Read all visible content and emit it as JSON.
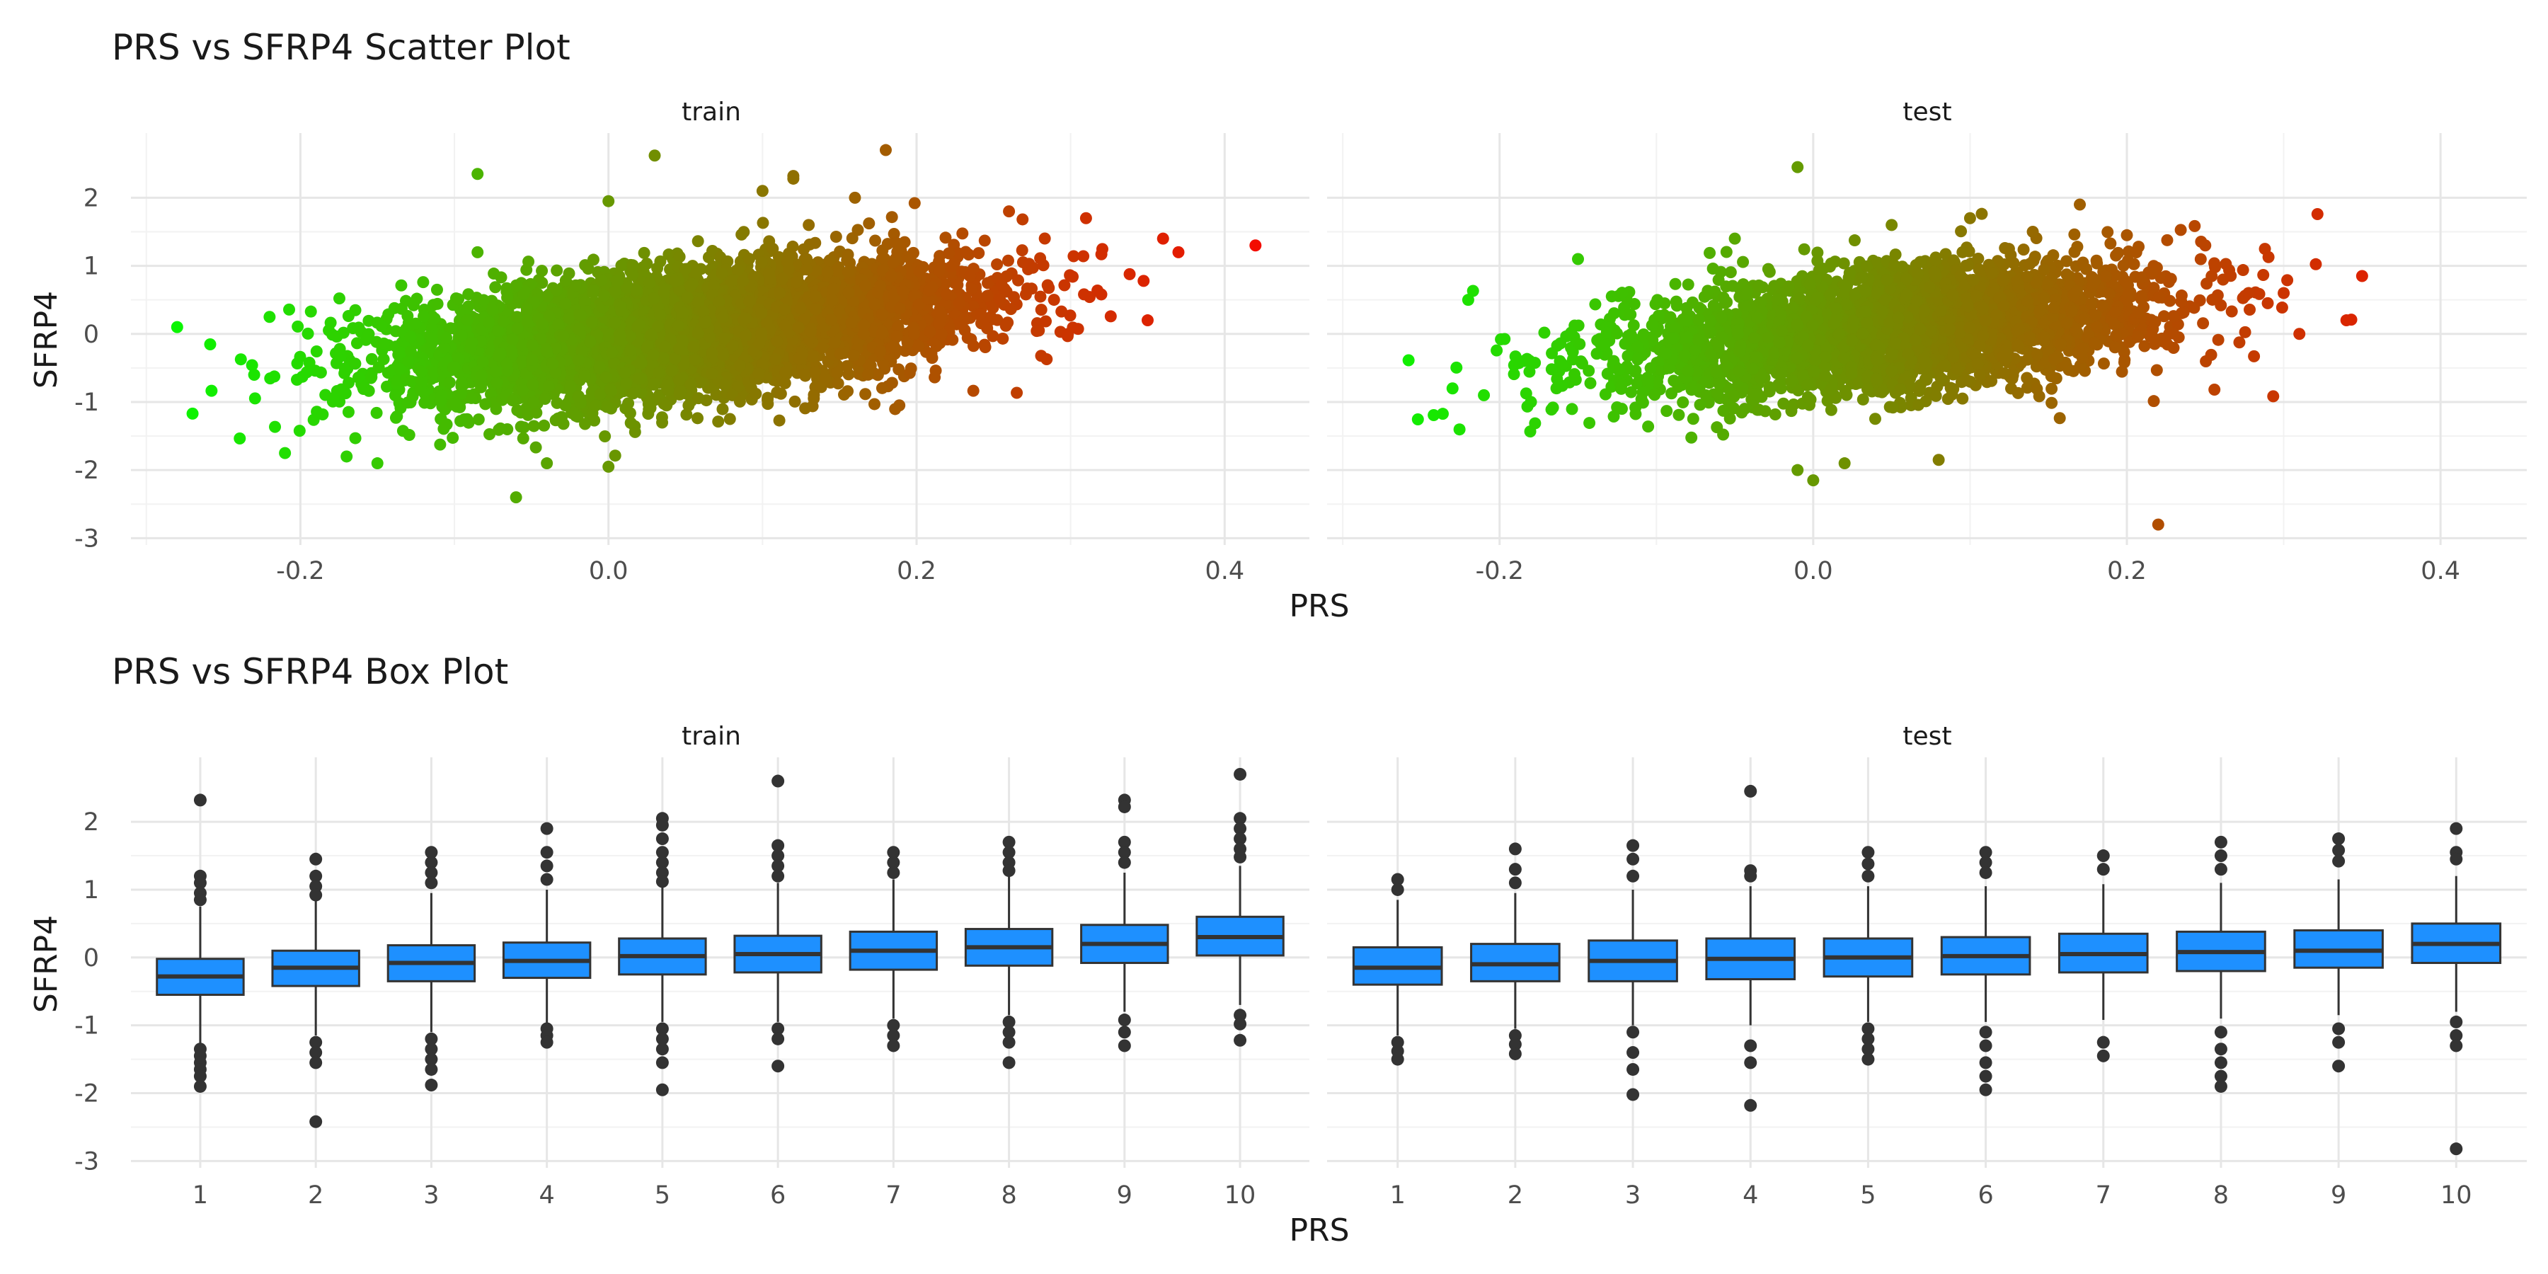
{
  "chart_data": [
    {
      "type": "scatter",
      "title": "PRS vs SFRP4 Scatter Plot",
      "xlabel": "PRS",
      "ylabel": "SFRP4",
      "facets": [
        "train",
        "test"
      ],
      "xlim": [
        -0.31,
        0.455
      ],
      "ylim": [
        -3.1,
        2.95
      ],
      "x_ticks": [
        "-0.2",
        "0.0",
        "0.2",
        "0.4"
      ],
      "y_ticks": [
        "-3",
        "-2",
        "-1",
        "0",
        "1",
        "2"
      ],
      "grid": true,
      "color_by": "PRS",
      "color_gradient": [
        "#00ff00",
        "#ff0000"
      ],
      "trend": {
        "intercept": -0.06,
        "slope": 2.2,
        "cloud_sd": 0.45
      },
      "series": [
        {
          "facet": "train",
          "x": [
            -0.28,
            -0.27,
            -0.22,
            -0.21,
            -0.23,
            -0.17,
            -0.15,
            -0.085,
            -0.085,
            -0.06,
            -0.04,
            0.0,
            0.03,
            0.0,
            0.1,
            0.12,
            0.12,
            0.13,
            0.16,
            0.18,
            0.26,
            0.31,
            0.35,
            0.36,
            0.37,
            0.42
          ],
          "y": [
            0.1,
            -1.17,
            0.25,
            -1.75,
            -0.6,
            -1.8,
            -1.9,
            2.35,
            1.2,
            -2.4,
            -1.9,
            1.95,
            2.62,
            -1.95,
            2.1,
            2.32,
            2.28,
            1.6,
            2.0,
            2.7,
            1.8,
            1.7,
            0.2,
            1.4,
            1.2,
            1.3
          ]
        },
        {
          "facet": "test",
          "x": [
            -0.23,
            -0.22,
            -0.21,
            -0.18,
            -0.15,
            -0.01,
            -0.01,
            0.0,
            0.02,
            0.05,
            0.1,
            0.14,
            0.17,
            0.2,
            0.22,
            0.25,
            0.3,
            0.31,
            0.34,
            0.35,
            -0.05,
            0.08
          ],
          "y": [
            -0.8,
            0.5,
            -0.9,
            -1.0,
            1.1,
            2.45,
            -2.0,
            -2.15,
            -1.9,
            1.6,
            1.7,
            1.5,
            1.9,
            1.45,
            -2.8,
            1.3,
            0.6,
            0.0,
            0.2,
            0.85,
            1.4,
            -1.85
          ]
        }
      ]
    },
    {
      "type": "box",
      "title": "PRS vs SFRP4 Box Plot",
      "xlabel": "PRS",
      "ylabel": "SFRP4",
      "facets": [
        "train",
        "test"
      ],
      "categories": [
        "1",
        "2",
        "3",
        "4",
        "5",
        "6",
        "7",
        "8",
        "9",
        "10"
      ],
      "ylim": [
        -3.1,
        2.95
      ],
      "y_ticks": [
        "-3",
        "-2",
        "-1",
        "0",
        "1",
        "2"
      ],
      "fill": "#1e90ff",
      "grid": true,
      "series": [
        {
          "facet": "train",
          "boxes": [
            {
              "q1": -0.55,
              "median": -0.28,
              "q3": -0.02,
              "whisker_low": -1.3,
              "whisker_high": 0.75,
              "outliers": [
                2.32,
                1.2,
                1.1,
                0.95,
                0.85,
                -1.35,
                -1.45,
                -1.55,
                -1.65,
                -1.75,
                -1.9
              ]
            },
            {
              "q1": -0.42,
              "median": -0.15,
              "q3": 0.1,
              "whisker_low": -1.15,
              "whisker_high": 0.85,
              "outliers": [
                1.45,
                1.2,
                1.05,
                0.92,
                -1.25,
                -1.4,
                -1.55,
                -2.42
              ]
            },
            {
              "q1": -0.35,
              "median": -0.08,
              "q3": 0.18,
              "whisker_low": -1.1,
              "whisker_high": 0.95,
              "outliers": [
                1.55,
                1.4,
                1.25,
                1.1,
                -1.2,
                -1.35,
                -1.5,
                -1.65,
                -1.88
              ]
            },
            {
              "q1": -0.3,
              "median": -0.05,
              "q3": 0.22,
              "whisker_low": -1.0,
              "whisker_high": 1.0,
              "outliers": [
                1.9,
                1.55,
                1.35,
                1.15,
                -1.05,
                -1.15,
                -1.25
              ]
            },
            {
              "q1": -0.25,
              "median": 0.02,
              "q3": 0.28,
              "whisker_low": -0.95,
              "whisker_high": 1.05,
              "outliers": [
                2.05,
                1.95,
                1.75,
                1.55,
                1.4,
                1.25,
                1.12,
                -1.05,
                -1.2,
                -1.35,
                -1.55,
                -1.95
              ]
            },
            {
              "q1": -0.22,
              "median": 0.05,
              "q3": 0.32,
              "whisker_low": -0.95,
              "whisker_high": 1.1,
              "outliers": [
                2.6,
                1.65,
                1.5,
                1.35,
                1.2,
                -1.05,
                -1.2,
                -1.6
              ]
            },
            {
              "q1": -0.18,
              "median": 0.1,
              "q3": 0.38,
              "whisker_low": -0.9,
              "whisker_high": 1.15,
              "outliers": [
                1.55,
                1.4,
                1.25,
                -1.0,
                -1.15,
                -1.3
              ]
            },
            {
              "q1": -0.12,
              "median": 0.15,
              "q3": 0.42,
              "whisker_low": -0.85,
              "whisker_high": 1.2,
              "outliers": [
                1.7,
                1.55,
                1.4,
                1.28,
                -0.95,
                -1.1,
                -1.25,
                -1.55
              ]
            },
            {
              "q1": -0.08,
              "median": 0.2,
              "q3": 0.48,
              "whisker_low": -0.8,
              "whisker_high": 1.25,
              "outliers": [
                2.32,
                2.22,
                1.7,
                1.55,
                1.4,
                -0.92,
                -1.1,
                -1.3
              ]
            },
            {
              "q1": 0.03,
              "median": 0.3,
              "q3": 0.6,
              "whisker_low": -0.7,
              "whisker_high": 1.35,
              "outliers": [
                2.7,
                2.05,
                1.9,
                1.75,
                1.6,
                1.48,
                -0.85,
                -0.98,
                -1.22
              ]
            }
          ]
        },
        {
          "facet": "test",
          "boxes": [
            {
              "q1": -0.4,
              "median": -0.15,
              "q3": 0.15,
              "whisker_low": -1.15,
              "whisker_high": 0.85,
              "outliers": [
                1.15,
                1.0,
                -1.25,
                -1.38,
                -1.5
              ]
            },
            {
              "q1": -0.35,
              "median": -0.1,
              "q3": 0.2,
              "whisker_low": -1.05,
              "whisker_high": 0.95,
              "outliers": [
                1.6,
                1.3,
                1.1,
                -1.15,
                -1.28,
                -1.42
              ]
            },
            {
              "q1": -0.35,
              "median": -0.05,
              "q3": 0.25,
              "whisker_low": -1.0,
              "whisker_high": 1.0,
              "outliers": [
                1.65,
                1.45,
                1.2,
                -1.1,
                -1.4,
                -1.65,
                -2.02
              ]
            },
            {
              "q1": -0.32,
              "median": -0.02,
              "q3": 0.28,
              "whisker_low": -1.0,
              "whisker_high": 1.05,
              "outliers": [
                2.45,
                1.28,
                1.2,
                -1.3,
                -1.55,
                -2.18
              ]
            },
            {
              "q1": -0.28,
              "median": 0.0,
              "q3": 0.28,
              "whisker_low": -0.95,
              "whisker_high": 1.05,
              "outliers": [
                1.55,
                1.38,
                1.2,
                -1.05,
                -1.2,
                -1.35,
                -1.5
              ]
            },
            {
              "q1": -0.25,
              "median": 0.02,
              "q3": 0.3,
              "whisker_low": -0.95,
              "whisker_high": 1.05,
              "outliers": [
                1.55,
                1.4,
                1.25,
                -1.1,
                -1.3,
                -1.55,
                -1.75,
                -1.95
              ]
            },
            {
              "q1": -0.22,
              "median": 0.05,
              "q3": 0.35,
              "whisker_low": -0.92,
              "whisker_high": 1.08,
              "outliers": [
                1.5,
                1.3,
                -1.25,
                -1.45
              ]
            },
            {
              "q1": -0.2,
              "median": 0.08,
              "q3": 0.38,
              "whisker_low": -0.9,
              "whisker_high": 1.1,
              "outliers": [
                1.7,
                1.5,
                1.3,
                -1.1,
                -1.35,
                -1.55,
                -1.75,
                -1.9
              ]
            },
            {
              "q1": -0.15,
              "median": 0.1,
              "q3": 0.4,
              "whisker_low": -0.85,
              "whisker_high": 1.15,
              "outliers": [
                1.75,
                1.58,
                1.42,
                -1.05,
                -1.25,
                -1.6
              ]
            },
            {
              "q1": -0.08,
              "median": 0.2,
              "q3": 0.5,
              "whisker_low": -0.8,
              "whisker_high": 1.2,
              "outliers": [
                1.9,
                1.55,
                1.45,
                -0.95,
                -1.15,
                -1.3,
                -2.82
              ]
            }
          ]
        }
      ]
    }
  ]
}
